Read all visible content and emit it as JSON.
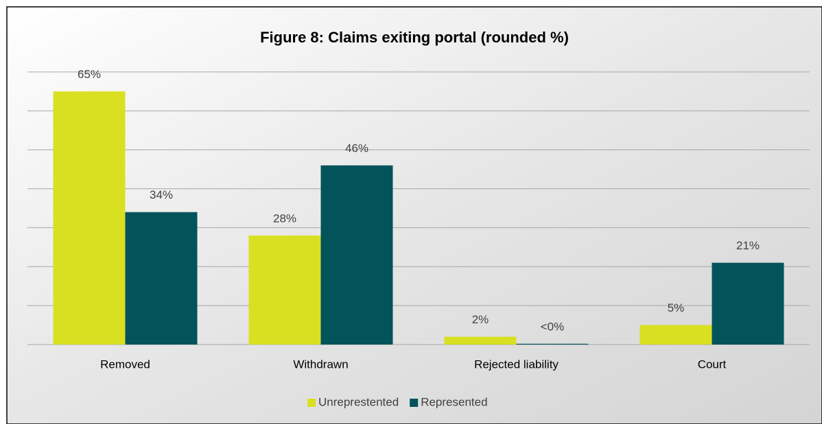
{
  "chart_data": {
    "type": "bar",
    "title": "Figure 8: Claims exiting portal (rounded %)",
    "categories": [
      "Removed",
      "Withdrawn",
      "Rejected liability",
      "Court"
    ],
    "series": [
      {
        "name": "Unreprestented",
        "color": "#d9e021",
        "values": [
          65,
          28,
          2,
          5
        ],
        "value_labels": [
          "65%",
          "28%",
          "2%",
          "5%"
        ]
      },
      {
        "name": "Represented",
        "color": "#03535a",
        "values": [
          34,
          46,
          0.2,
          21
        ],
        "value_labels": [
          "34%",
          "46%",
          "<0%",
          "21%"
        ]
      }
    ],
    "ylim": [
      0,
      70
    ],
    "yticks": [
      0,
      10,
      20,
      30,
      40,
      50,
      60,
      70
    ],
    "grid": true,
    "legend": "bottom"
  }
}
